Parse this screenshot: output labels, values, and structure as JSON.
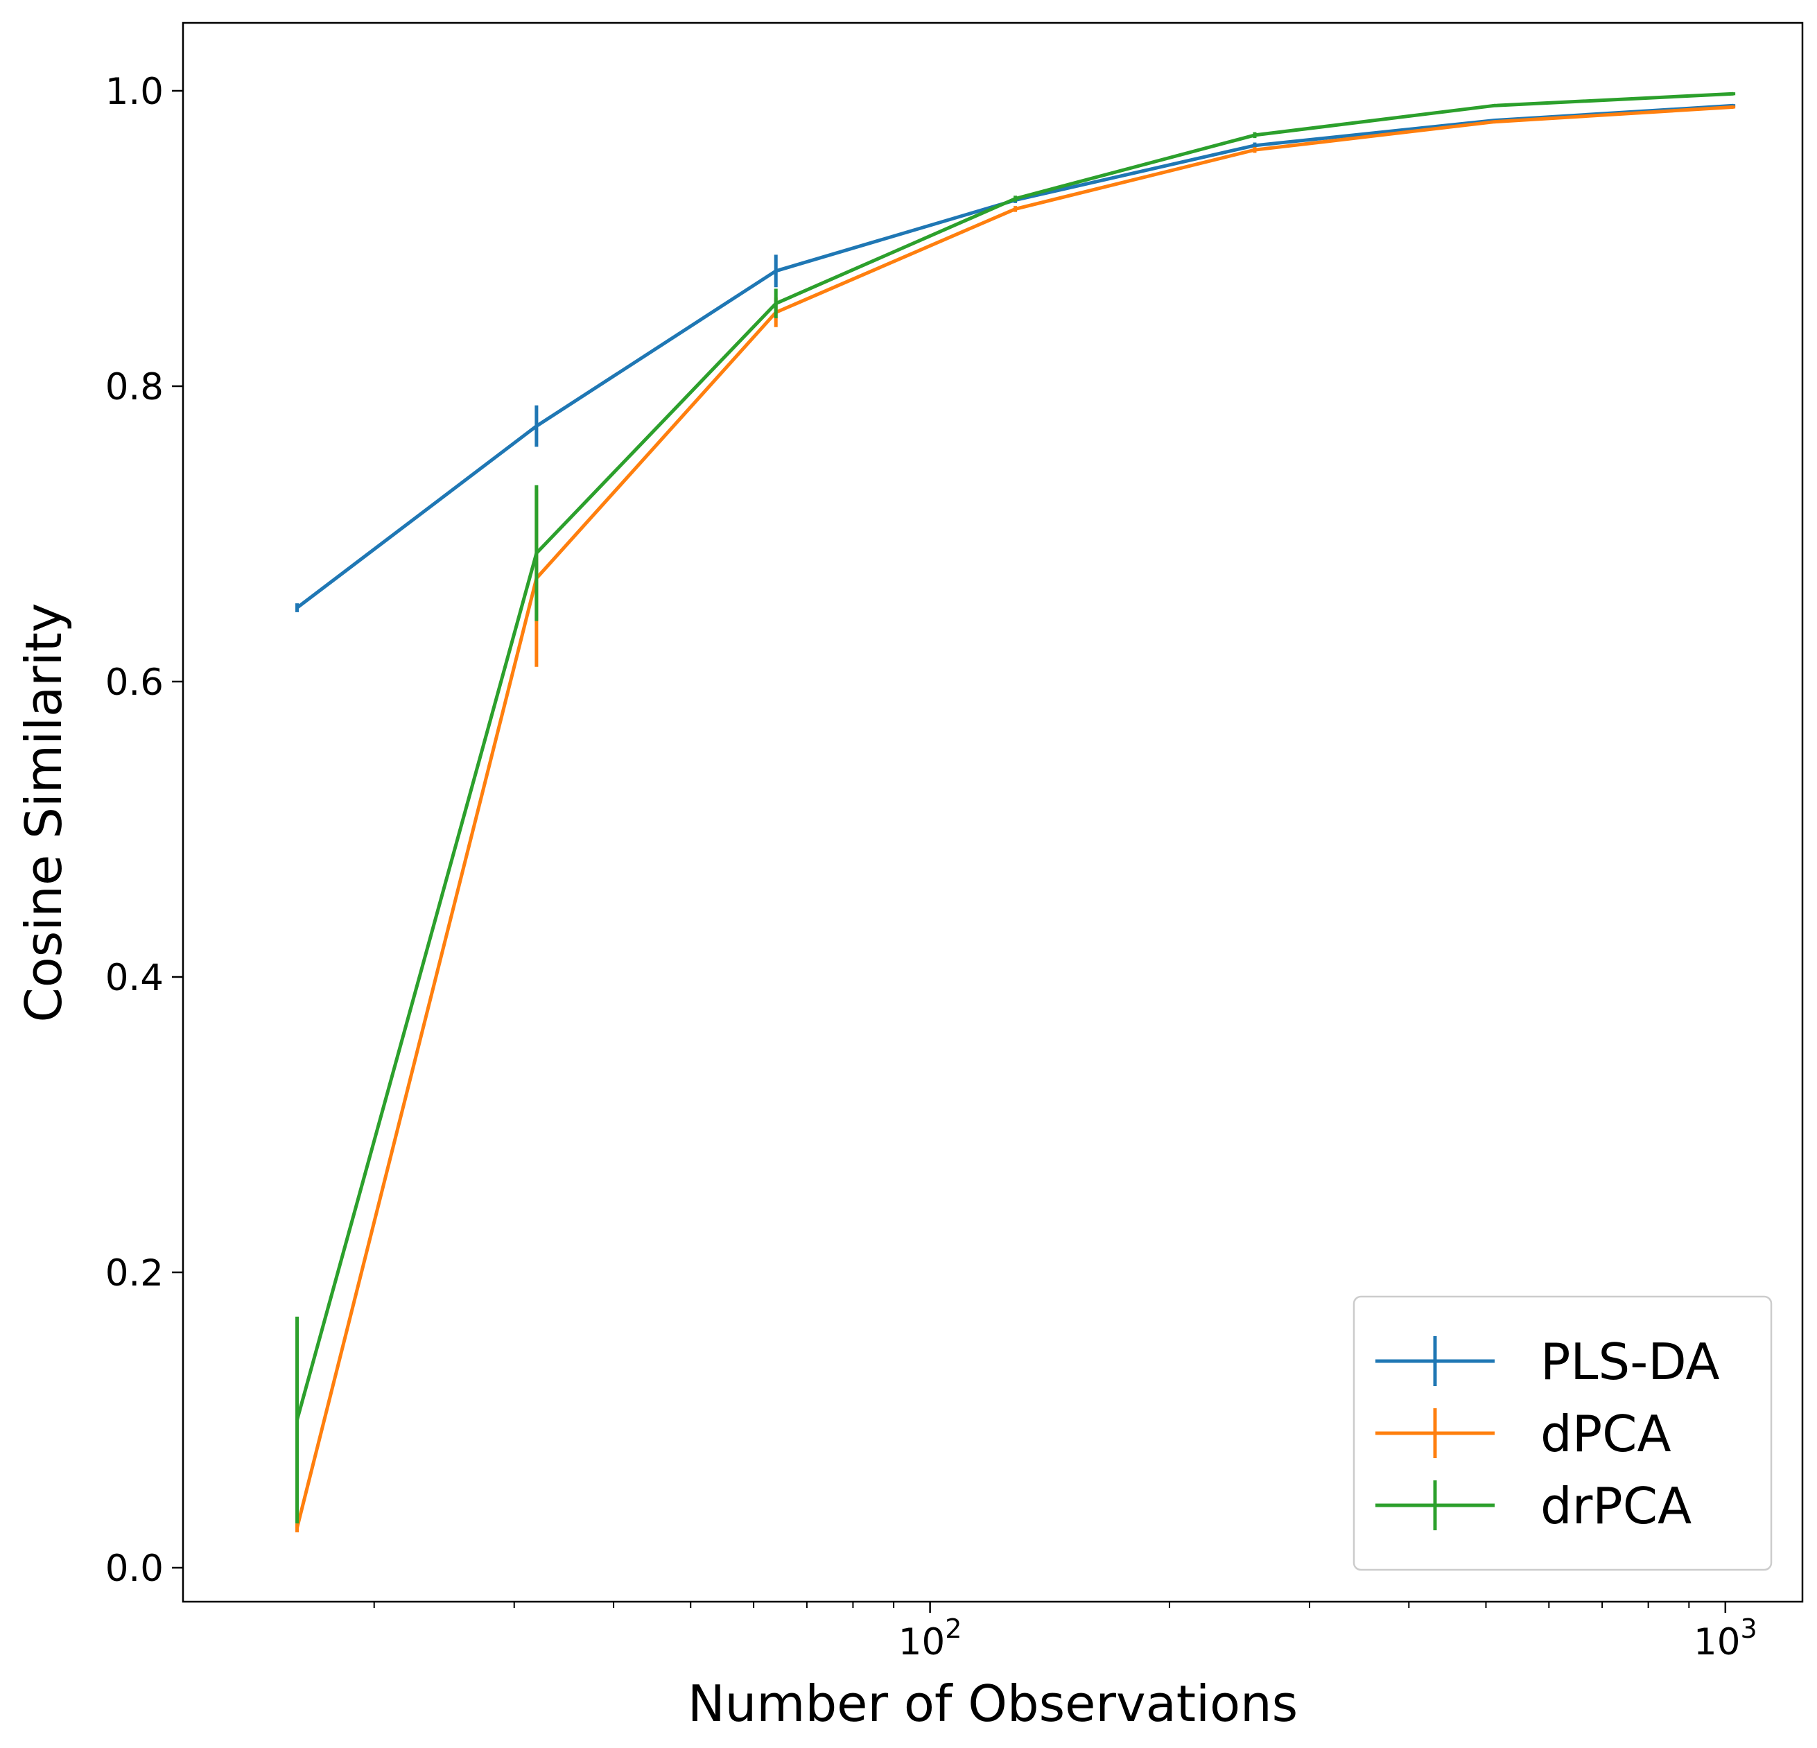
{
  "chart_data": {
    "type": "line",
    "title": "",
    "xlabel": "Number of Observations",
    "ylabel": "Cosine Similarity",
    "xscale": "log",
    "xlim": [
      11.5,
      1250
    ],
    "ylim": [
      -0.023,
      1.046
    ],
    "grid": false,
    "legend_position": "lower-right",
    "x": [
      16,
      32,
      64,
      128,
      256,
      512,
      1024
    ],
    "series": [
      {
        "name": "PLS-DA",
        "color": "#1f77b4",
        "values": [
          0.65,
          0.773,
          0.878,
          0.926,
          0.963,
          0.98,
          0.99
        ],
        "errors": [
          0.003,
          0.014,
          0.011,
          0.002,
          0.002,
          0.001,
          0.001
        ]
      },
      {
        "name": "dPCA",
        "color": "#ff7f0e",
        "values": [
          0.027,
          0.67,
          0.85,
          0.92,
          0.96,
          0.979,
          0.989
        ],
        "errors": [
          0.003,
          0.06,
          0.01,
          0.002,
          0.002,
          0.001,
          0.001
        ]
      },
      {
        "name": "drPCA",
        "color": "#2ca02c",
        "values": [
          0.1,
          0.687,
          0.856,
          0.927,
          0.97,
          0.99,
          0.998
        ],
        "errors": [
          0.07,
          0.046,
          0.01,
          0.002,
          0.002,
          0.001,
          0.001
        ]
      }
    ],
    "yticks": [
      {
        "value": 0.0,
        "label": "0.0"
      },
      {
        "value": 0.2,
        "label": "0.2"
      },
      {
        "value": 0.4,
        "label": "0.4"
      },
      {
        "value": 0.6,
        "label": "0.6"
      },
      {
        "value": 0.8,
        "label": "0.8"
      },
      {
        "value": 1.0,
        "label": "1.0"
      }
    ],
    "xticks_major": [
      {
        "value": 100,
        "base": "10",
        "exp": "2"
      },
      {
        "value": 1000,
        "base": "10",
        "exp": "3"
      }
    ],
    "xticks_minor": [
      20,
      30,
      40,
      50,
      60,
      70,
      80,
      90,
      200,
      300,
      400,
      500,
      600,
      700,
      800,
      900
    ]
  }
}
